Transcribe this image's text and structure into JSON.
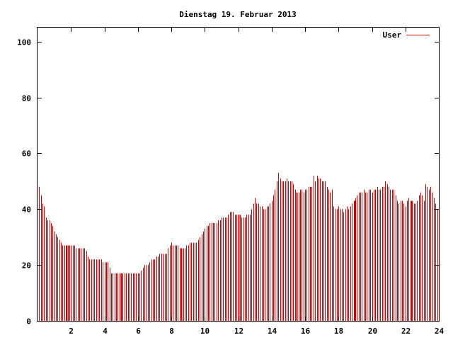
{
  "chart_data": {
    "type": "bar",
    "title": "Dienstag 19. Februar 2013",
    "xlabel": "",
    "ylabel": "",
    "xlim": [
      0,
      24
    ],
    "ylim": [
      0,
      105
    ],
    "x_ticks": [
      2,
      4,
      6,
      8,
      10,
      12,
      14,
      16,
      18,
      20,
      22,
      24
    ],
    "y_ticks": [
      0,
      20,
      40,
      60,
      80,
      100
    ],
    "grid": false,
    "legend_position": "top-right",
    "series": [
      {
        "name": "User",
        "color": "#cc0000",
        "points": [
          [
            0.1,
            48
          ],
          [
            0.2,
            45
          ],
          [
            0.3,
            42
          ],
          [
            0.4,
            41
          ],
          [
            0.5,
            37
          ],
          [
            0.6,
            36
          ],
          [
            0.7,
            36
          ],
          [
            0.8,
            35
          ],
          [
            0.9,
            34
          ],
          [
            1.0,
            32
          ],
          [
            1.1,
            31
          ],
          [
            1.2,
            30
          ],
          [
            1.3,
            29
          ],
          [
            1.4,
            28
          ],
          [
            1.5,
            27
          ],
          [
            1.6,
            27
          ],
          [
            1.7,
            27
          ],
          [
            1.8,
            27
          ],
          [
            1.9,
            27
          ],
          [
            2.0,
            27
          ],
          [
            2.1,
            27
          ],
          [
            2.2,
            27
          ],
          [
            2.3,
            26
          ],
          [
            2.4,
            26
          ],
          [
            2.5,
            26
          ],
          [
            2.6,
            26
          ],
          [
            2.7,
            26
          ],
          [
            2.8,
            26
          ],
          [
            2.9,
            25
          ],
          [
            3.0,
            23
          ],
          [
            3.1,
            22
          ],
          [
            3.2,
            22
          ],
          [
            3.3,
            22
          ],
          [
            3.4,
            22
          ],
          [
            3.5,
            22
          ],
          [
            3.6,
            22
          ],
          [
            3.7,
            22
          ],
          [
            3.8,
            22
          ],
          [
            3.9,
            21
          ],
          [
            4.0,
            21
          ],
          [
            4.1,
            21
          ],
          [
            4.2,
            21
          ],
          [
            4.3,
            19
          ],
          [
            4.4,
            17
          ],
          [
            4.5,
            17
          ],
          [
            4.6,
            17
          ],
          [
            4.7,
            17
          ],
          [
            4.8,
            17
          ],
          [
            4.9,
            17
          ],
          [
            5.0,
            17
          ],
          [
            5.1,
            17
          ],
          [
            5.2,
            17
          ],
          [
            5.3,
            17
          ],
          [
            5.4,
            17
          ],
          [
            5.5,
            17
          ],
          [
            5.6,
            17
          ],
          [
            5.7,
            17
          ],
          [
            5.8,
            17
          ],
          [
            5.9,
            17
          ],
          [
            6.0,
            17
          ],
          [
            6.1,
            17
          ],
          [
            6.2,
            18
          ],
          [
            6.3,
            19
          ],
          [
            6.4,
            20
          ],
          [
            6.5,
            20
          ],
          [
            6.6,
            20
          ],
          [
            6.7,
            21
          ],
          [
            6.8,
            22
          ],
          [
            6.9,
            22
          ],
          [
            7.0,
            22
          ],
          [
            7.1,
            23
          ],
          [
            7.2,
            23
          ],
          [
            7.3,
            24
          ],
          [
            7.4,
            24
          ],
          [
            7.5,
            24
          ],
          [
            7.6,
            24
          ],
          [
            7.7,
            24
          ],
          [
            7.8,
            26
          ],
          [
            7.9,
            27
          ],
          [
            8.0,
            28
          ],
          [
            8.1,
            27
          ],
          [
            8.2,
            27
          ],
          [
            8.3,
            27
          ],
          [
            8.4,
            27
          ],
          [
            8.5,
            26
          ],
          [
            8.6,
            26
          ],
          [
            8.7,
            26
          ],
          [
            8.8,
            26
          ],
          [
            8.9,
            27
          ],
          [
            9.0,
            27
          ],
          [
            9.1,
            28
          ],
          [
            9.2,
            28
          ],
          [
            9.3,
            28
          ],
          [
            9.4,
            28
          ],
          [
            9.5,
            28
          ],
          [
            9.6,
            29
          ],
          [
            9.7,
            30
          ],
          [
            9.8,
            31
          ],
          [
            9.9,
            32
          ],
          [
            10.0,
            33
          ],
          [
            10.1,
            34
          ],
          [
            10.2,
            34
          ],
          [
            10.3,
            35
          ],
          [
            10.4,
            35
          ],
          [
            10.5,
            35
          ],
          [
            10.6,
            35
          ],
          [
            10.7,
            35
          ],
          [
            10.8,
            36
          ],
          [
            10.9,
            36
          ],
          [
            11.0,
            37
          ],
          [
            11.1,
            37
          ],
          [
            11.2,
            37
          ],
          [
            11.3,
            37
          ],
          [
            11.4,
            38
          ],
          [
            11.5,
            39
          ],
          [
            11.6,
            39
          ],
          [
            11.7,
            39
          ],
          [
            11.8,
            38
          ],
          [
            11.9,
            38
          ],
          [
            12.0,
            38
          ],
          [
            12.1,
            38
          ],
          [
            12.2,
            37
          ],
          [
            12.3,
            37
          ],
          [
            12.4,
            37
          ],
          [
            12.5,
            38
          ],
          [
            12.6,
            38
          ],
          [
            12.7,
            38
          ],
          [
            12.8,
            40
          ],
          [
            12.9,
            42
          ],
          [
            13.0,
            44
          ],
          [
            13.1,
            42
          ],
          [
            13.2,
            42
          ],
          [
            13.3,
            41
          ],
          [
            13.4,
            41
          ],
          [
            13.5,
            40
          ],
          [
            13.6,
            40
          ],
          [
            13.7,
            41
          ],
          [
            13.8,
            41
          ],
          [
            13.9,
            42
          ],
          [
            14.0,
            43
          ],
          [
            14.1,
            45
          ],
          [
            14.2,
            47
          ],
          [
            14.3,
            50
          ],
          [
            14.4,
            53
          ],
          [
            14.5,
            51
          ],
          [
            14.6,
            50
          ],
          [
            14.7,
            50
          ],
          [
            14.8,
            50
          ],
          [
            14.9,
            51
          ],
          [
            15.0,
            50
          ],
          [
            15.1,
            50
          ],
          [
            15.2,
            50
          ],
          [
            15.3,
            49
          ],
          [
            15.4,
            47
          ],
          [
            15.5,
            46
          ],
          [
            15.6,
            46
          ],
          [
            15.7,
            47
          ],
          [
            15.8,
            47
          ],
          [
            15.9,
            46
          ],
          [
            16.0,
            47
          ],
          [
            16.1,
            47
          ],
          [
            16.2,
            48
          ],
          [
            16.3,
            48
          ],
          [
            16.4,
            48
          ],
          [
            16.5,
            52
          ],
          [
            16.6,
            50
          ],
          [
            16.7,
            52
          ],
          [
            16.8,
            51
          ],
          [
            16.9,
            51
          ],
          [
            17.0,
            50
          ],
          [
            17.1,
            50
          ],
          [
            17.2,
            50
          ],
          [
            17.3,
            48
          ],
          [
            17.4,
            47
          ],
          [
            17.5,
            46
          ],
          [
            17.6,
            47
          ],
          [
            17.7,
            41
          ],
          [
            17.8,
            40
          ],
          [
            17.9,
            40
          ],
          [
            18.0,
            41
          ],
          [
            18.1,
            40
          ],
          [
            18.2,
            40
          ],
          [
            18.3,
            39
          ],
          [
            18.4,
            40
          ],
          [
            18.5,
            41
          ],
          [
            18.6,
            40
          ],
          [
            18.7,
            41
          ],
          [
            18.8,
            42
          ],
          [
            18.9,
            43
          ],
          [
            19.0,
            44
          ],
          [
            19.1,
            45
          ],
          [
            19.2,
            46
          ],
          [
            19.3,
            46
          ],
          [
            19.4,
            46
          ],
          [
            19.5,
            47
          ],
          [
            19.6,
            46
          ],
          [
            19.7,
            46
          ],
          [
            19.8,
            47
          ],
          [
            19.9,
            47
          ],
          [
            20.0,
            46
          ],
          [
            20.1,
            47
          ],
          [
            20.2,
            47
          ],
          [
            20.3,
            48
          ],
          [
            20.4,
            47
          ],
          [
            20.5,
            47
          ],
          [
            20.6,
            48
          ],
          [
            20.7,
            48
          ],
          [
            20.8,
            50
          ],
          [
            20.9,
            49
          ],
          [
            21.0,
            48
          ],
          [
            21.1,
            47
          ],
          [
            21.2,
            47
          ],
          [
            21.3,
            47
          ],
          [
            21.4,
            45
          ],
          [
            21.5,
            43
          ],
          [
            21.6,
            42
          ],
          [
            21.7,
            43
          ],
          [
            21.8,
            43
          ],
          [
            21.9,
            42
          ],
          [
            22.0,
            41
          ],
          [
            22.1,
            43
          ],
          [
            22.2,
            44
          ],
          [
            22.3,
            43
          ],
          [
            22.4,
            43
          ],
          [
            22.5,
            42
          ],
          [
            22.6,
            42
          ],
          [
            22.7,
            43
          ],
          [
            22.8,
            45
          ],
          [
            22.9,
            46
          ],
          [
            23.0,
            45
          ],
          [
            23.1,
            43
          ],
          [
            23.2,
            49
          ],
          [
            23.3,
            48
          ],
          [
            23.4,
            47
          ],
          [
            23.5,
            48
          ],
          [
            23.6,
            46
          ],
          [
            23.7,
            44
          ],
          [
            23.8,
            42
          ],
          [
            23.9,
            40
          ],
          [
            24.0,
            43
          ]
        ],
        "spikes": [
          [
            1.75,
            27
          ],
          [
            5.0,
            17
          ],
          [
            8.6,
            26
          ],
          [
            12.0,
            38
          ],
          [
            15.5,
            46
          ],
          [
            18.95,
            43
          ],
          [
            22.35,
            43
          ]
        ]
      }
    ]
  }
}
